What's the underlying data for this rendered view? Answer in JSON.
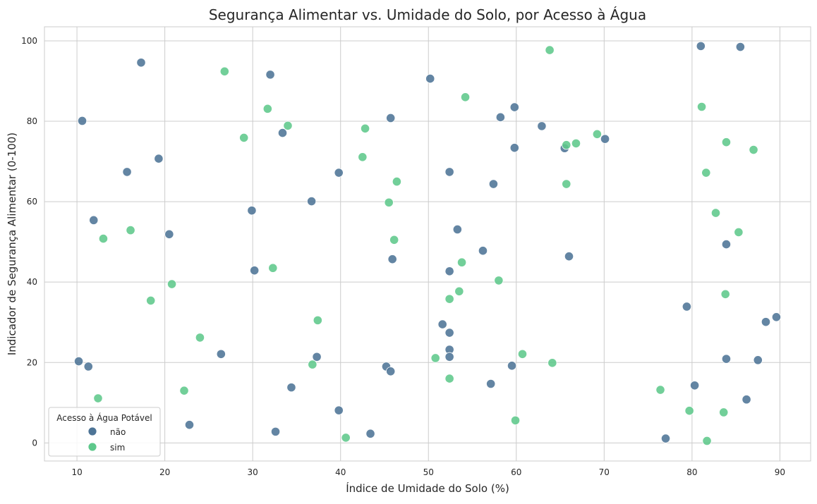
{
  "chart_data": {
    "type": "scatter",
    "title": "Segurança Alimentar vs. Umidade do Solo, por Acesso à Água",
    "xlabel": "Índice de Umidade do Solo (%)",
    "ylabel": "Indicador de Segurança Alimentar (0-100)",
    "xlim": [
      6.3,
      93.5
    ],
    "ylim": [
      -4.5,
      103.5
    ],
    "xticks": [
      10,
      20,
      30,
      40,
      50,
      60,
      70,
      80,
      90
    ],
    "yticks": [
      0,
      20,
      40,
      60,
      80,
      100
    ],
    "grid": true,
    "legend": {
      "title": "Acesso à Água Potável",
      "placement": "lower-left"
    },
    "series": [
      {
        "name": "não",
        "color": "#4d7496",
        "points": [
          [
            10.2,
            20.3
          ],
          [
            10.6,
            80.1
          ],
          [
            11.3,
            19.0
          ],
          [
            11.9,
            55.4
          ],
          [
            15.7,
            67.4
          ],
          [
            17.3,
            94.6
          ],
          [
            19.3,
            70.7
          ],
          [
            20.5,
            51.9
          ],
          [
            22.8,
            4.5
          ],
          [
            26.4,
            22.1
          ],
          [
            29.9,
            57.8
          ],
          [
            30.2,
            42.9
          ],
          [
            32.0,
            91.6
          ],
          [
            32.6,
            2.8
          ],
          [
            33.4,
            77.1
          ],
          [
            34.4,
            13.8
          ],
          [
            36.7,
            60.1
          ],
          [
            37.3,
            21.4
          ],
          [
            39.8,
            67.2
          ],
          [
            39.8,
            8.1
          ],
          [
            43.4,
            2.3
          ],
          [
            45.2,
            19.0
          ],
          [
            45.7,
            80.8
          ],
          [
            45.7,
            17.8
          ],
          [
            45.9,
            45.7
          ],
          [
            50.2,
            90.6
          ],
          [
            51.6,
            29.5
          ],
          [
            52.4,
            67.4
          ],
          [
            52.4,
            42.7
          ],
          [
            52.4,
            27.4
          ],
          [
            52.4,
            23.2
          ],
          [
            52.4,
            21.4
          ],
          [
            53.3,
            53.1
          ],
          [
            56.2,
            47.8
          ],
          [
            57.1,
            14.7
          ],
          [
            57.4,
            64.4
          ],
          [
            58.2,
            81.0
          ],
          [
            59.5,
            19.2
          ],
          [
            59.8,
            83.5
          ],
          [
            59.8,
            73.4
          ],
          [
            62.9,
            78.8
          ],
          [
            65.5,
            73.3
          ],
          [
            66.0,
            46.4
          ],
          [
            70.1,
            75.6
          ],
          [
            77.0,
            1.1
          ],
          [
            79.4,
            33.9
          ],
          [
            80.3,
            14.3
          ],
          [
            81.0,
            98.7
          ],
          [
            83.9,
            49.4
          ],
          [
            83.9,
            20.9
          ],
          [
            85.5,
            98.5
          ],
          [
            86.2,
            10.8
          ],
          [
            87.5,
            20.6
          ],
          [
            88.4,
            30.1
          ],
          [
            89.6,
            31.3
          ]
        ]
      },
      {
        "name": "sim",
        "color": "#5ec88b",
        "points": [
          [
            12.4,
            11.1
          ],
          [
            13.0,
            50.8
          ],
          [
            16.1,
            52.9
          ],
          [
            18.4,
            35.4
          ],
          [
            20.8,
            39.5
          ],
          [
            22.2,
            13.0
          ],
          [
            24.0,
            26.2
          ],
          [
            26.8,
            92.4
          ],
          [
            29.0,
            75.9
          ],
          [
            31.7,
            83.1
          ],
          [
            32.3,
            43.5
          ],
          [
            34.0,
            78.9
          ],
          [
            36.8,
            19.5
          ],
          [
            37.4,
            30.5
          ],
          [
            40.6,
            1.3
          ],
          [
            42.5,
            71.1
          ],
          [
            42.8,
            78.2
          ],
          [
            45.5,
            59.8
          ],
          [
            46.1,
            50.5
          ],
          [
            46.4,
            65.0
          ],
          [
            50.8,
            21.1
          ],
          [
            52.4,
            35.8
          ],
          [
            52.4,
            16.0
          ],
          [
            53.5,
            37.7
          ],
          [
            53.8,
            44.9
          ],
          [
            54.2,
            86.0
          ],
          [
            58.0,
            40.4
          ],
          [
            59.9,
            5.6
          ],
          [
            60.7,
            22.1
          ],
          [
            63.8,
            97.7
          ],
          [
            64.1,
            19.9
          ],
          [
            65.7,
            74.1
          ],
          [
            65.7,
            64.4
          ],
          [
            66.8,
            74.5
          ],
          [
            69.2,
            76.8
          ],
          [
            76.4,
            13.2
          ],
          [
            79.7,
            8.0
          ],
          [
            81.1,
            83.6
          ],
          [
            81.6,
            67.2
          ],
          [
            81.7,
            0.5
          ],
          [
            82.7,
            57.2
          ],
          [
            83.6,
            7.6
          ],
          [
            83.8,
            37.0
          ],
          [
            83.9,
            74.8
          ],
          [
            85.3,
            52.4
          ],
          [
            87.0,
            72.9
          ]
        ]
      }
    ]
  }
}
